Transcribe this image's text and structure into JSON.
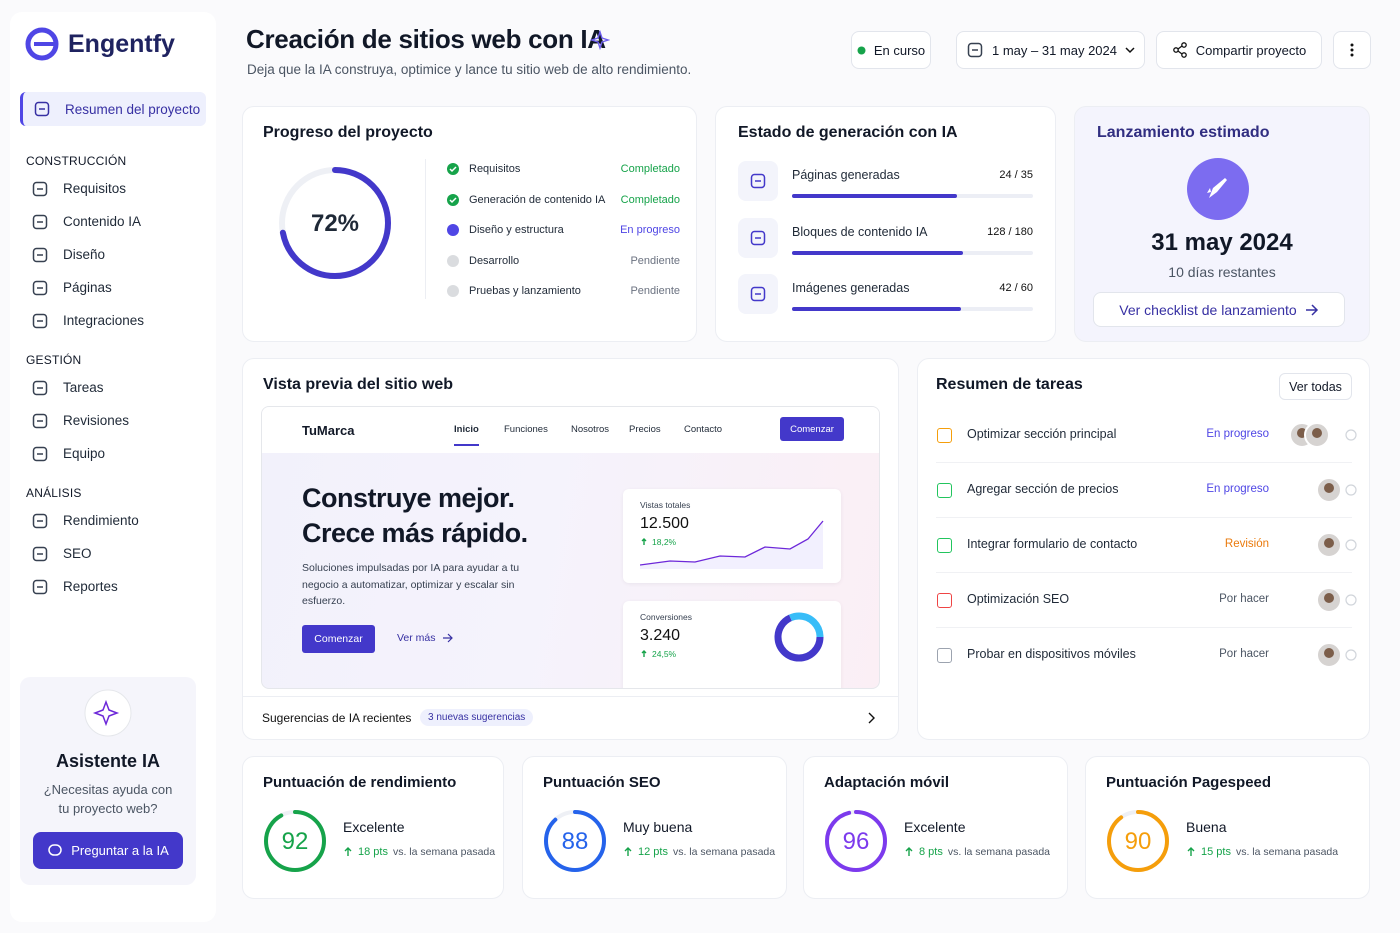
{
  "sidebar": {
    "brand": "Engentfy",
    "active": "Resumen del proyecto",
    "sections": [
      {
        "title": "CONSTRUCCIÓN",
        "items": [
          "Requisitos",
          "Contenido IA",
          "Diseño",
          "Páginas",
          "Integraciones"
        ]
      },
      {
        "title": "GESTIÓN",
        "items": [
          "Tareas",
          "Revisiones",
          "Equipo"
        ]
      },
      {
        "title": "ANÁLISIS",
        "items": [
          "Rendimiento",
          "SEO",
          "Reportes"
        ]
      }
    ],
    "assistant": {
      "title": "Asistente IA",
      "text": "¿Necesitas ayuda con tu proyecto web?",
      "button": "Preguntar a la IA"
    }
  },
  "header": {
    "title": "Creación de sitios web con IA",
    "subtitle": "Deja que la IA construya, optimice y lance tu sitio web de alto rendimiento.",
    "status": "En curso",
    "dates": "1 may – 31 may 2024",
    "share": "Compartir proyecto"
  },
  "progress": {
    "title": "Progreso del proyecto",
    "percent": {
      "value": 72,
      "label": "72%"
    },
    "steps": [
      {
        "name": "Requisitos",
        "status": "Completado",
        "color": "#16a34a"
      },
      {
        "name": "Generación de contenido IA",
        "status": "Completado",
        "color": "#16a34a"
      },
      {
        "name": "Diseño y estructura",
        "status": "En progreso",
        "color": "#4f46e5"
      },
      {
        "name": "Desarrollo",
        "status": "Pendiente",
        "color": "#6b7280"
      },
      {
        "name": "Pruebas y lanzamiento",
        "status": "Pendiente",
        "color": "#6b7280"
      }
    ]
  },
  "generation": {
    "title": "Estado de generación con IA",
    "items": [
      {
        "name": "Páginas generadas",
        "done": 24,
        "total": 35,
        "label": "24 / 35"
      },
      {
        "name": "Bloques de contenido IA",
        "done": 128,
        "total": 180,
        "label": "128 / 180"
      },
      {
        "name": "Imágenes generadas",
        "done": 42,
        "total": 60,
        "label": "42 / 60"
      }
    ]
  },
  "launch": {
    "title": "Lanzamiento estimado",
    "date": "31 may 2024",
    "remaining": "10 días restantes",
    "button": "Ver checklist de lanzamiento"
  },
  "preview": {
    "title": "Vista previa del sitio web",
    "brand": "TuMarca",
    "nav": [
      "Inicio",
      "Funciones",
      "Nosotros",
      "Precios",
      "Contacto"
    ],
    "cta": "Comenzar",
    "headline": [
      "Construye mejor.",
      "Crece más rápido."
    ],
    "text": "Soluciones impulsadas por IA para ayudar a tu negocio a automatizar, optimizar y escalar sin esfuerzo.",
    "primary": "Comenzar",
    "secondary": "Ver más",
    "stats": [
      {
        "label": "Vistas totales",
        "value": "12.500",
        "change": "18,2%"
      },
      {
        "label": "Conversiones",
        "value": "3.240",
        "change": "24,5%"
      }
    ],
    "suggestions": "Sugerencias de IA recientes",
    "badge": "3 nuevas sugerencias"
  },
  "tasks": {
    "title": "Resumen de tareas",
    "button": "Ver todas",
    "items": [
      {
        "name": "Optimizar sección principal",
        "status": "En progreso",
        "color": "#f59e0b",
        "status_color": "#4f46e5"
      },
      {
        "name": "Agregar sección de precios",
        "status": "En progreso",
        "color": "#22c55e",
        "status_color": "#4f46e5"
      },
      {
        "name": "Integrar formulario de contacto",
        "status": "Revisión",
        "color": "#22c55e",
        "status_color": "#ea7a0c"
      },
      {
        "name": "Optimización SEO",
        "status": "Por hacer",
        "color": "#ef4444",
        "status_color": "#4b5563"
      },
      {
        "name": "Probar en dispositivos móviles",
        "status": "Por hacer",
        "color": "#9ca3af",
        "status_color": "#4b5563"
      }
    ]
  },
  "scores": [
    {
      "title": "Puntuación de rendimiento",
      "value": 92,
      "rating": "Excelente",
      "delta": "18 pts",
      "note": "vs. la semana pasada",
      "color": "#16a34a"
    },
    {
      "title": "Puntuación SEO",
      "value": 88,
      "rating": "Muy buena",
      "delta": "12 pts",
      "note": "vs. la semana pasada",
      "color": "#2563eb"
    },
    {
      "title": "Adaptación móvil",
      "value": 96,
      "rating": "Excelente",
      "delta": "8 pts",
      "note": "vs. la semana pasada",
      "color": "#7c3aed"
    },
    {
      "title": "Puntuación Pagespeed",
      "value": 90,
      "rating": "Buena",
      "delta": "15 pts",
      "note": "vs. la semana pasada",
      "color": "#f59e0b"
    }
  ]
}
